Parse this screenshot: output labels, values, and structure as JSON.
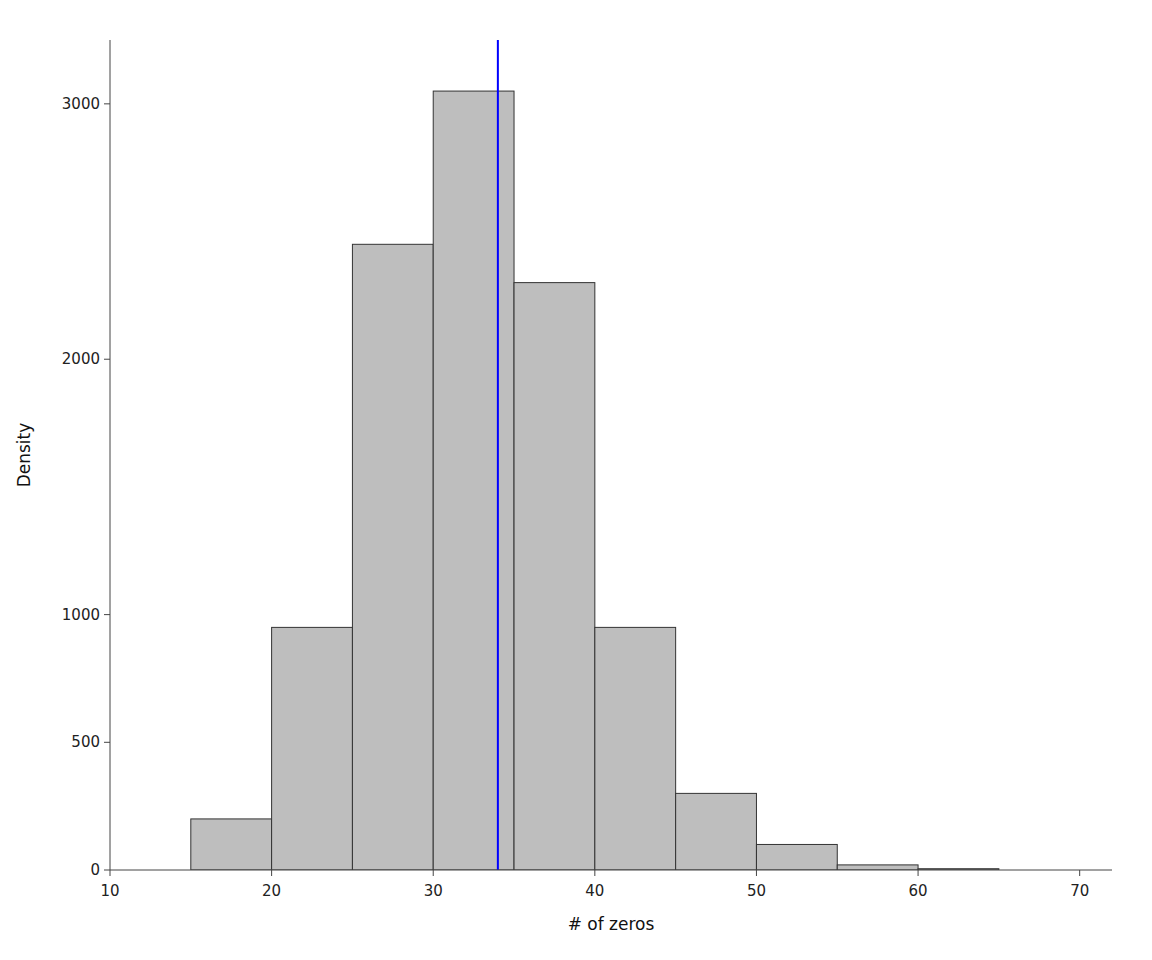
{
  "chart_data": {
    "type": "histogram",
    "bins": [
      15,
      20,
      25,
      30,
      35,
      40,
      45,
      50,
      55,
      60,
      65
    ],
    "values": [
      200,
      950,
      2450,
      3050,
      2300,
      950,
      300,
      100,
      20,
      5
    ],
    "color": "#bebebe",
    "reference_lines": [
      {
        "x": 34,
        "color": "blue"
      }
    ],
    "x_label": "# of zeros",
    "y_label": "Density",
    "xlim": [
      10,
      72
    ],
    "ylim": [
      0,
      3250
    ],
    "xticks": [
      10,
      20,
      30,
      40,
      50,
      60,
      70
    ],
    "yticks": [
      0,
      500,
      1000,
      2000,
      3000
    ],
    "grid": false
  }
}
